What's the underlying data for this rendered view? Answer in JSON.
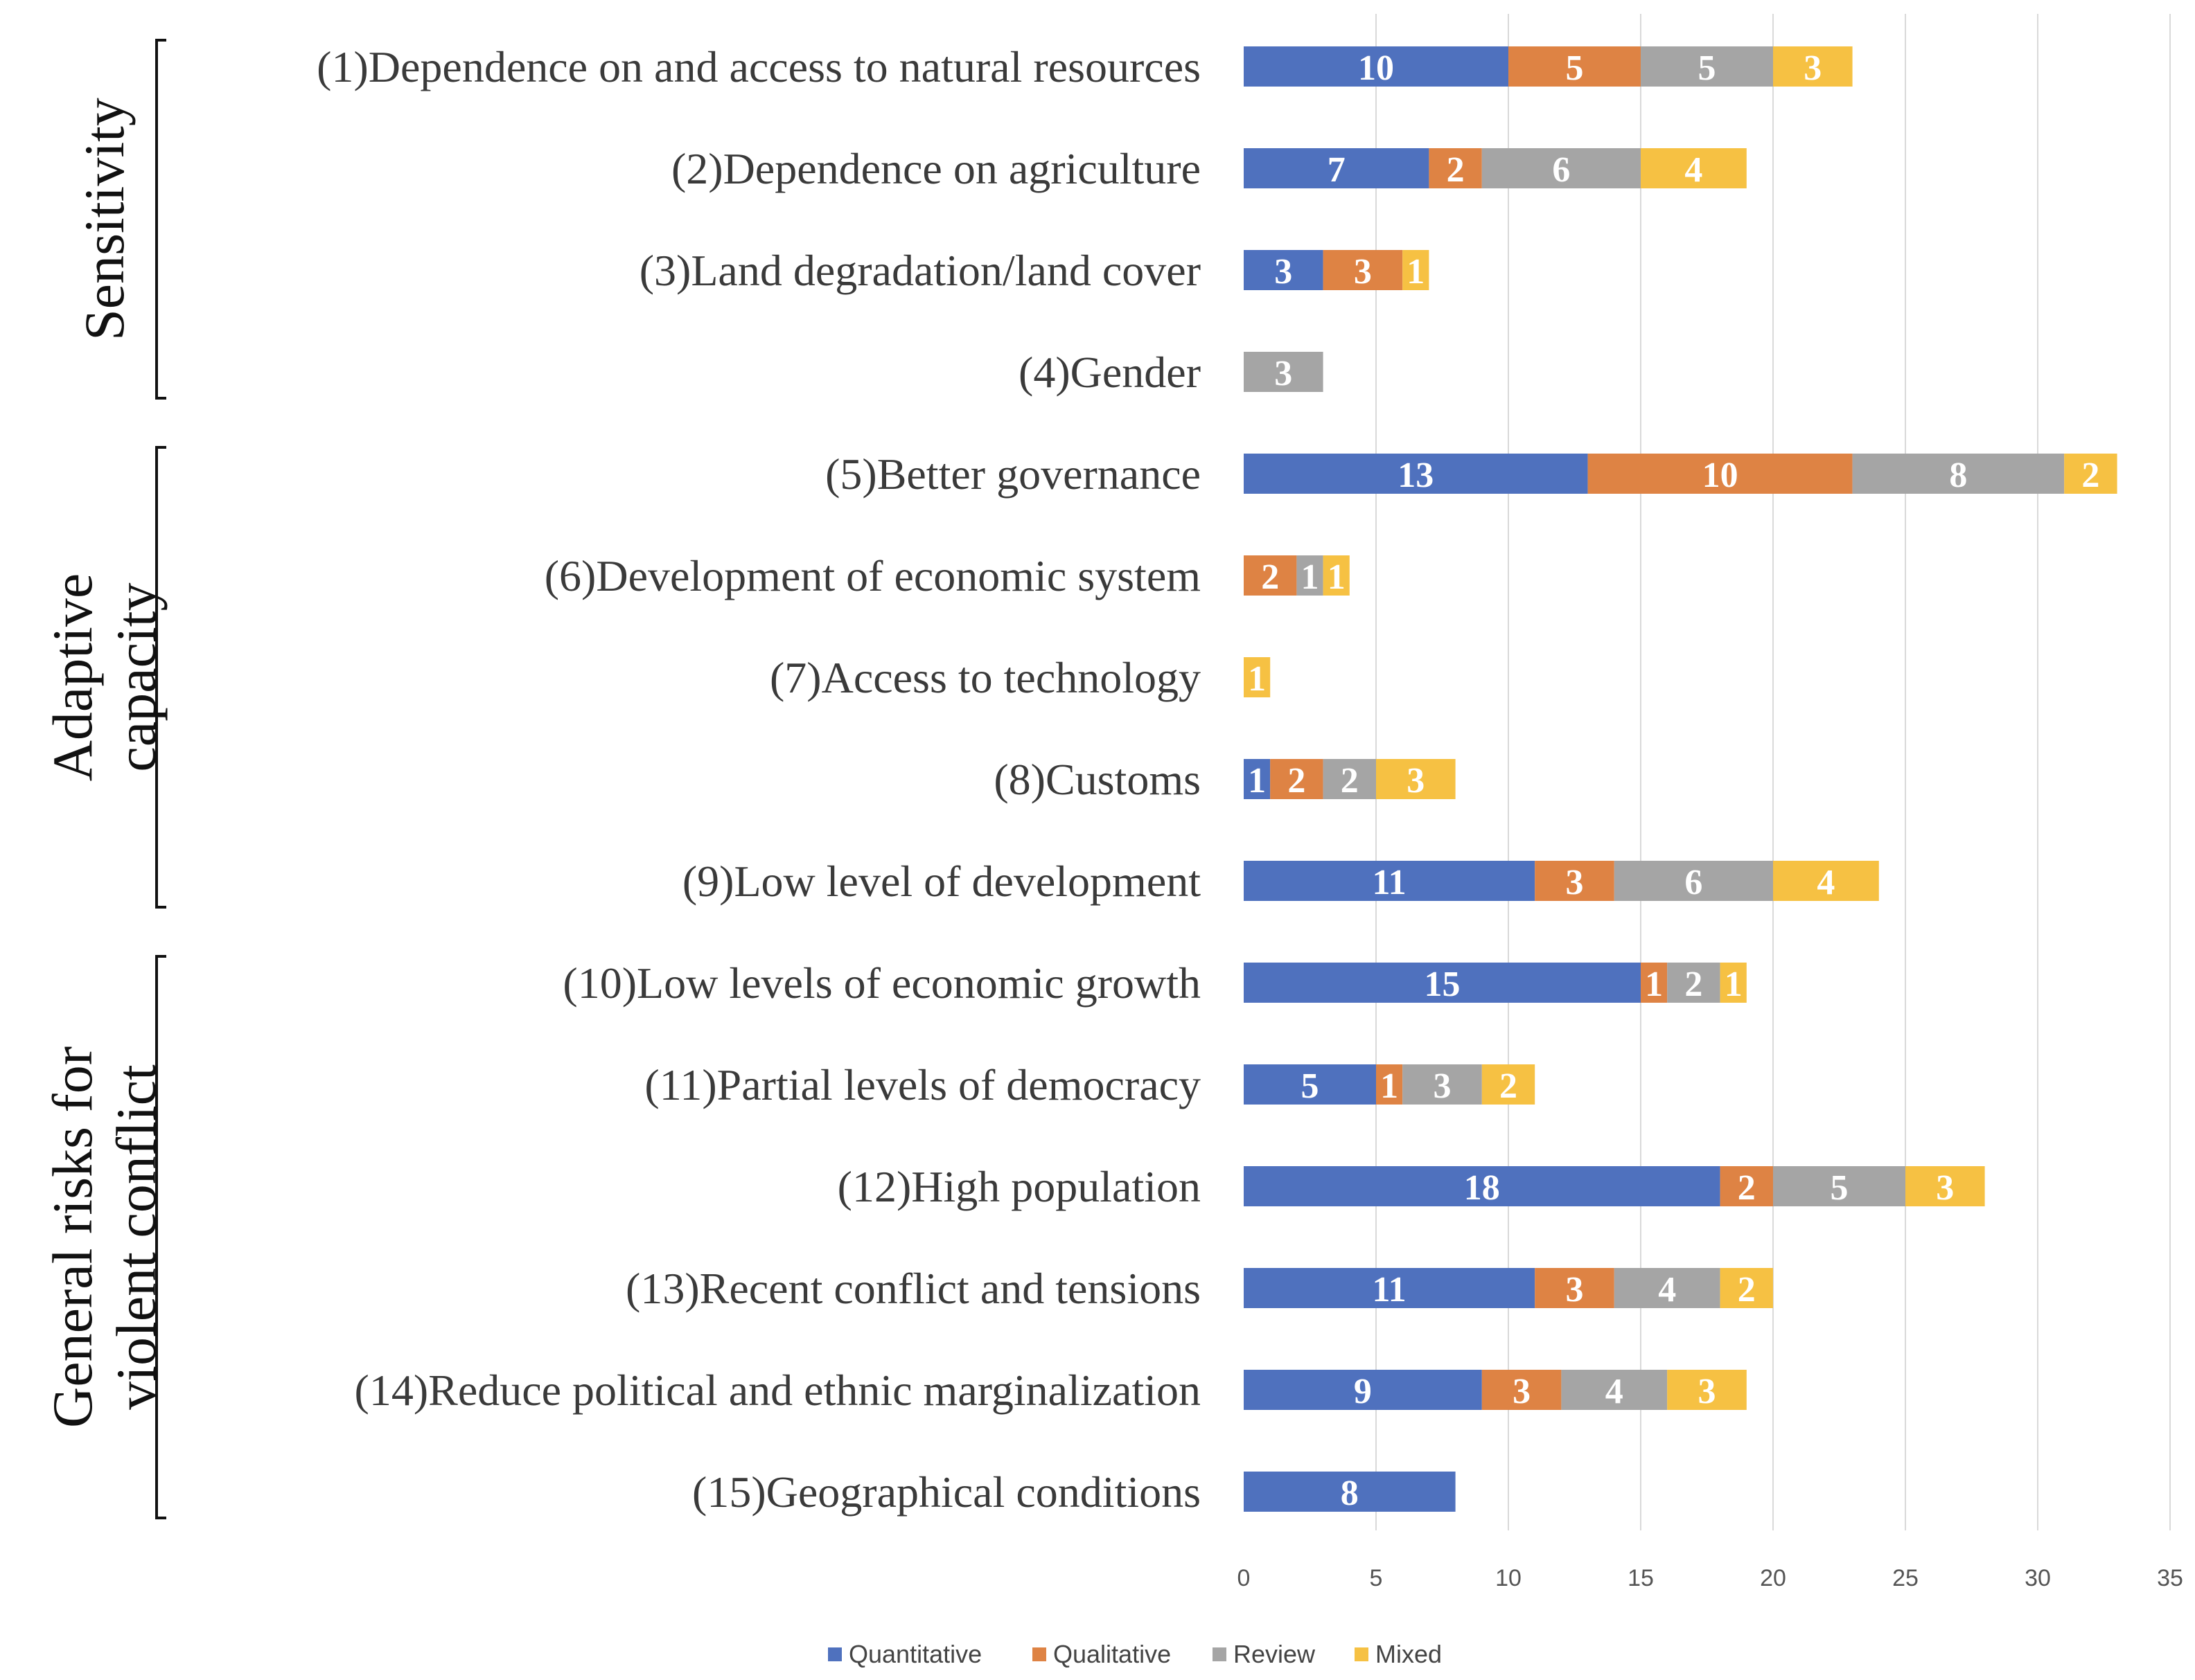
{
  "chart_data": {
    "type": "bar",
    "orientation": "horizontal",
    "stacked": true,
    "categories": [
      "(1)Dependence on and access to natural resources",
      "(2)Dependence on agriculture",
      "(3)Land degradation/land cover",
      "(4)Gender",
      "(5)Better governance",
      "(6)Development of economic system",
      "(7)Access to technology",
      "(8)Customs",
      "(9)Low level of development",
      "(10)Low levels of economic growth",
      "(11)Partial levels of democracy",
      "(12)High population",
      "(13)Recent conflict and tensions",
      "(14)Reduce political and ethnic marginalization",
      "(15)Geographical conditions"
    ],
    "series": [
      {
        "name": "Quantitative",
        "color": "#4f71be",
        "values": [
          10,
          7,
          3,
          0,
          13,
          0,
          0,
          1,
          11,
          15,
          5,
          18,
          11,
          9,
          8
        ]
      },
      {
        "name": "Qualitative",
        "color": "#de8344",
        "values": [
          5,
          2,
          3,
          0,
          10,
          2,
          0,
          2,
          3,
          1,
          1,
          2,
          3,
          3,
          0
        ]
      },
      {
        "name": "Review",
        "color": "#a5a5a5",
        "values": [
          5,
          6,
          0,
          3,
          8,
          1,
          0,
          2,
          6,
          2,
          3,
          5,
          4,
          4,
          0
        ]
      },
      {
        "name": "Mixed",
        "color": "#f6c143",
        "values": [
          3,
          4,
          1,
          0,
          2,
          1,
          1,
          3,
          4,
          1,
          2,
          3,
          2,
          3,
          0
        ]
      }
    ],
    "groups": [
      {
        "lines": [
          "Sensitivity"
        ],
        "from": 0,
        "to": 3
      },
      {
        "lines": [
          "Adaptive",
          "capacity"
        ],
        "from": 4,
        "to": 8
      },
      {
        "lines": [
          "General risks for",
          "violent conflict"
        ],
        "from": 9,
        "to": 14
      }
    ],
    "xlim": [
      0,
      35
    ],
    "xticks": [
      0,
      5,
      10,
      15,
      20,
      25,
      30,
      35
    ],
    "grid": true,
    "legend_position": "bottom",
    "title": "",
    "xlabel": "",
    "ylabel": ""
  }
}
